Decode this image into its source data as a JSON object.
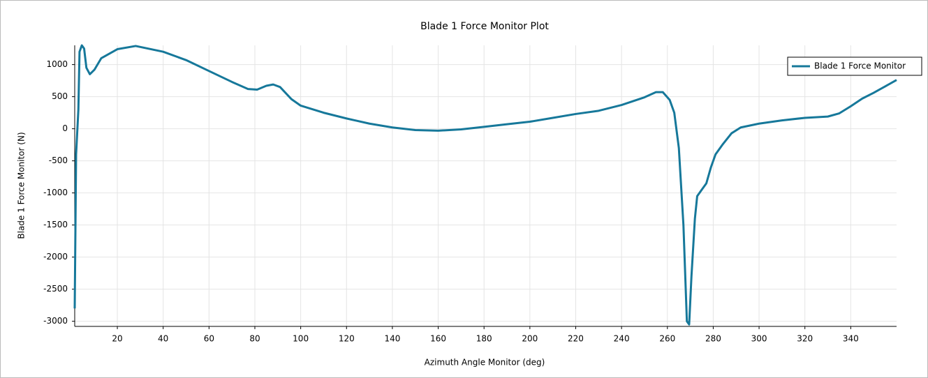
{
  "chart_data": {
    "type": "line",
    "title": "Blade 1 Force Monitor Plot",
    "x_label": "Azimuth Angle Monitor (deg)",
    "y_label": "Blade 1 Force Monitor (N)",
    "x": [
      1.4,
      2,
      3,
      3.5,
      4.5,
      5.5,
      6.5,
      8,
      10,
      13,
      20,
      28,
      40,
      50,
      60,
      70,
      77,
      81,
      85,
      88,
      91,
      96,
      100,
      110,
      120,
      130,
      140,
      150,
      160,
      170,
      180,
      190,
      200,
      210,
      220,
      230,
      240,
      250,
      255,
      258,
      261,
      263,
      265,
      267,
      268.5,
      269.5,
      270.5,
      272,
      273,
      275,
      277,
      279,
      281,
      284,
      288,
      292,
      300,
      310,
      320,
      330,
      335,
      340,
      345,
      350,
      355,
      360
    ],
    "series": [
      {
        "name": "Blade 1 Force Monitor",
        "color": "#16789a",
        "values": [
          -2800,
          -400,
          300,
          1200,
          1300,
          1250,
          950,
          850,
          920,
          1100,
          1240,
          1290,
          1200,
          1070,
          900,
          730,
          620,
          610,
          670,
          690,
          650,
          460,
          360,
          250,
          160,
          80,
          20,
          -20,
          -30,
          -10,
          30,
          70,
          110,
          170,
          230,
          280,
          370,
          490,
          570,
          570,
          450,
          250,
          -300,
          -1500,
          -3000,
          -3050,
          -2300,
          -1400,
          -1050,
          -950,
          -850,
          -600,
          -400,
          -250,
          -70,
          20,
          80,
          130,
          170,
          190,
          240,
          350,
          470,
          560,
          660,
          760
        ]
      }
    ],
    "xlim": [
      1.4,
      360
    ],
    "ylim": [
      -3080,
      1300
    ],
    "xticks": [
      20,
      40,
      60,
      80,
      100,
      120,
      140,
      160,
      180,
      200,
      220,
      240,
      260,
      280,
      300,
      320,
      340
    ],
    "yticks": [
      -3000,
      -2500,
      -2000,
      -1500,
      -1000,
      -500,
      0,
      500,
      1000
    ],
    "grid": true,
    "legend": "upper right"
  }
}
